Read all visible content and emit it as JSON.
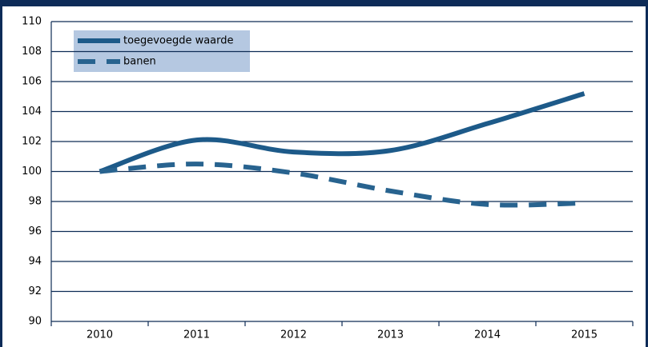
{
  "chart_data": {
    "type": "line",
    "categories": [
      "2010",
      "2011",
      "2012",
      "2013",
      "2014",
      "2015"
    ],
    "series": [
      {
        "name": "toegevoegde waarde",
        "color": "#1d5a89",
        "dashed": false,
        "values": [
          100,
          102.1,
          101.3,
          101.4,
          103.2,
          105.2
        ]
      },
      {
        "name": "banen",
        "color": "#28638f",
        "dashed": true,
        "values": [
          100,
          100.5,
          99.9,
          98.7,
          97.8,
          97.9
        ]
      }
    ],
    "ylim": [
      90,
      110
    ],
    "yticks": [
      90,
      92,
      94,
      96,
      98,
      100,
      102,
      104,
      106,
      108,
      110
    ],
    "grid": true,
    "legend": "top-left"
  }
}
